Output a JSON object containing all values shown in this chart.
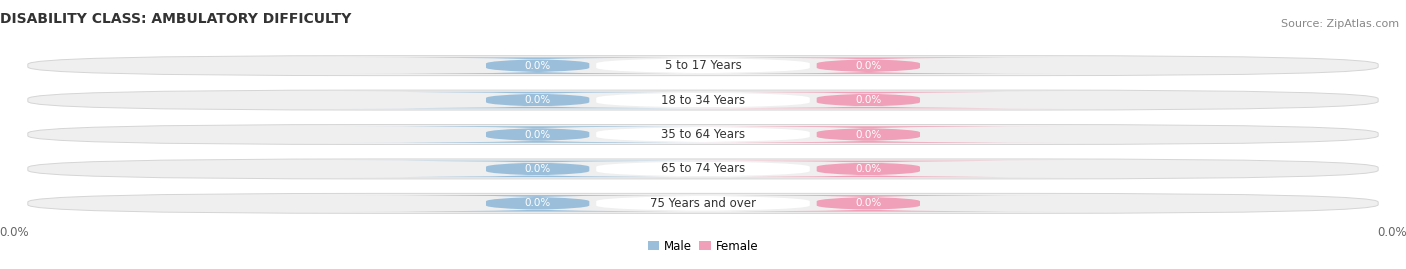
{
  "title": "DISABILITY CLASS: AMBULATORY DIFFICULTY",
  "source_text": "Source: ZipAtlas.com",
  "categories": [
    "5 to 17 Years",
    "18 to 34 Years",
    "35 to 64 Years",
    "65 to 74 Years",
    "75 Years and over"
  ],
  "male_values": [
    0.0,
    0.0,
    0.0,
    0.0,
    0.0
  ],
  "female_values": [
    0.0,
    0.0,
    0.0,
    0.0,
    0.0
  ],
  "male_color": "#9bbfdb",
  "female_color": "#f0a0b8",
  "title_fontsize": 10,
  "tick_fontsize": 8.5,
  "source_fontsize": 8,
  "x_left_label": "0.0%",
  "x_right_label": "0.0%",
  "male_legend": "Male",
  "female_legend": "Female",
  "fig_bg_color": "#ffffff",
  "bar_row_bg": "#efefef",
  "bar_row_border": "#d5d5d5",
  "center_label_bg": "#ffffff",
  "center_label_color": "#333333",
  "value_label_color": "#ffffff"
}
